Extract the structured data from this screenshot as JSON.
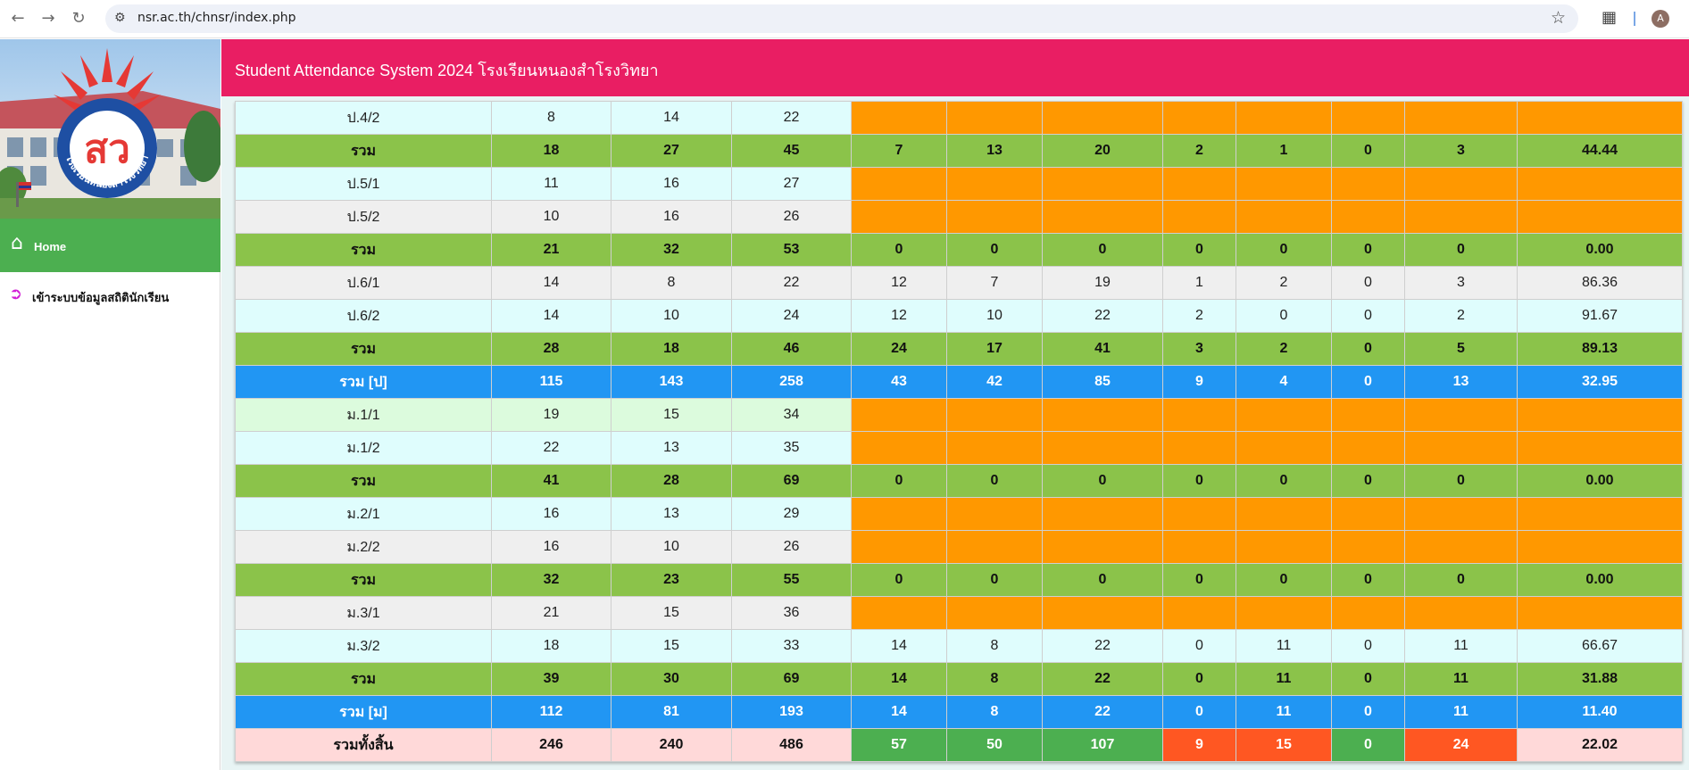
{
  "browser": {
    "url": "nsr.ac.th/chnsr/index.php",
    "avatar_letter": "A"
  },
  "sidebar": {
    "logo_text": "โรงเรียนหนองสำโรงวิทยา",
    "logo_monogram": "สว",
    "home_label": "Home",
    "login_label": "เข้าระบบข้อมูลสถิตินักเรียน"
  },
  "header": {
    "title": "Student Attendance System 2024 โรงเรียนหนองสำโรงวิทยา"
  },
  "colors": {
    "header": "#e91e63",
    "sidebar_home": "#4caf50",
    "subtotal_row": "#8bc34a",
    "level_total_row": "#2196f3",
    "no_data_cell": "#ff9800",
    "grand_green": "#4caf50",
    "grand_red": "#ff5722"
  },
  "table": {
    "rows": [
      {
        "type": "class",
        "style": "light",
        "cells": [
          "ป.4/2",
          "8",
          "14",
          "22"
        ],
        "empty": true
      },
      {
        "type": "sum",
        "cells": [
          "รวม",
          "18",
          "27",
          "45",
          "7",
          "13",
          "20",
          "2",
          "1",
          "0",
          "3",
          "44.44"
        ]
      },
      {
        "type": "class",
        "style": "light",
        "cells": [
          "ป.5/1",
          "11",
          "16",
          "27"
        ],
        "empty": true
      },
      {
        "type": "class",
        "style": "gray",
        "cells": [
          "ป.5/2",
          "10",
          "16",
          "26"
        ],
        "empty": true
      },
      {
        "type": "sum",
        "cells": [
          "รวม",
          "21",
          "32",
          "53",
          "0",
          "0",
          "0",
          "0",
          "0",
          "0",
          "0",
          "0.00"
        ]
      },
      {
        "type": "class",
        "style": "gray",
        "cells": [
          "ป.6/1",
          "14",
          "8",
          "22",
          "12",
          "7",
          "19",
          "1",
          "2",
          "0",
          "3",
          "86.36"
        ]
      },
      {
        "type": "class",
        "style": "light",
        "cells": [
          "ป.6/2",
          "14",
          "10",
          "24",
          "12",
          "10",
          "22",
          "2",
          "0",
          "0",
          "2",
          "91.67"
        ]
      },
      {
        "type": "sum",
        "cells": [
          "รวม",
          "28",
          "18",
          "46",
          "24",
          "17",
          "41",
          "3",
          "2",
          "0",
          "5",
          "89.13"
        ]
      },
      {
        "type": "level",
        "cells": [
          "รวม [ป]",
          "115",
          "143",
          "258",
          "43",
          "42",
          "85",
          "9",
          "4",
          "0",
          "13",
          "32.95"
        ]
      },
      {
        "type": "class",
        "style": "mint",
        "cells": [
          "ม.1/1",
          "19",
          "15",
          "34"
        ],
        "empty": true
      },
      {
        "type": "class",
        "style": "light",
        "cells": [
          "ม.1/2",
          "22",
          "13",
          "35"
        ],
        "empty": true
      },
      {
        "type": "sum",
        "cells": [
          "รวม",
          "41",
          "28",
          "69",
          "0",
          "0",
          "0",
          "0",
          "0",
          "0",
          "0",
          "0.00"
        ]
      },
      {
        "type": "class",
        "style": "light",
        "cells": [
          "ม.2/1",
          "16",
          "13",
          "29"
        ],
        "empty": true
      },
      {
        "type": "class",
        "style": "gray",
        "cells": [
          "ม.2/2",
          "16",
          "10",
          "26"
        ],
        "empty": true
      },
      {
        "type": "sum",
        "cells": [
          "รวม",
          "32",
          "23",
          "55",
          "0",
          "0",
          "0",
          "0",
          "0",
          "0",
          "0",
          "0.00"
        ]
      },
      {
        "type": "class",
        "style": "gray",
        "cells": [
          "ม.3/1",
          "21",
          "15",
          "36"
        ],
        "empty": true
      },
      {
        "type": "class",
        "style": "light",
        "cells": [
          "ม.3/2",
          "18",
          "15",
          "33",
          "14",
          "8",
          "22",
          "0",
          "11",
          "0",
          "11",
          "66.67"
        ]
      },
      {
        "type": "sum",
        "cells": [
          "รวม",
          "39",
          "30",
          "69",
          "14",
          "8",
          "22",
          "0",
          "11",
          "0",
          "11",
          "31.88"
        ]
      },
      {
        "type": "level",
        "cells": [
          "รวม [ม]",
          "112",
          "81",
          "193",
          "14",
          "8",
          "22",
          "0",
          "11",
          "0",
          "11",
          "11.40"
        ]
      },
      {
        "type": "grand",
        "cells": [
          "รวมทั้งสิ้น",
          "246",
          "240",
          "486",
          "57",
          "50",
          "107",
          "9",
          "15",
          "0",
          "24",
          "22.02"
        ]
      }
    ]
  }
}
